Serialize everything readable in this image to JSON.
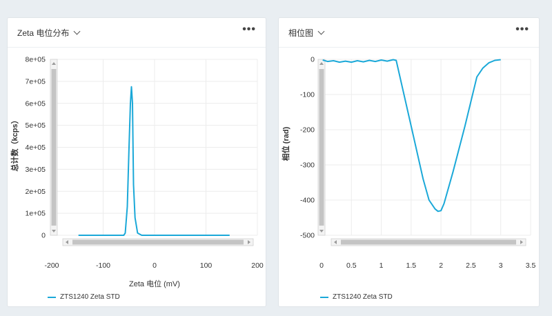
{
  "colors": {
    "series": "#1aa8d8",
    "scrollbar": "#c4c4c4",
    "grid": "#ececec"
  },
  "icons": {
    "menu": "more-horizontal-icon",
    "dropdown": "chevron-down-icon"
  },
  "panels": [
    {
      "title": "Zeta 电位分布",
      "menu_label": "•••",
      "legend_label": "ZTS1240 Zeta STD"
    },
    {
      "title": "相位图",
      "menu_label": "•••",
      "legend_label": "ZTS1240 Zeta STD"
    }
  ],
  "chart_data": [
    {
      "type": "line",
      "xlabel": "Zeta 电位 (mV)",
      "ylabel": "总计数（kcps）",
      "xlim": [
        -200,
        200
      ],
      "ylim": [
        0,
        800000
      ],
      "x_ticks": [
        "-200",
        "-100",
        "0",
        "100",
        "200"
      ],
      "y_ticks": [
        "0",
        "1e+05",
        "2e+05",
        "3e+05",
        "4e+05",
        "5e+05",
        "6e+05",
        "7e+05",
        "8e+05"
      ],
      "grid": true,
      "legend_placement": "bottom-left",
      "series": [
        {
          "name": "ZTS1240 Zeta STD",
          "x": [
            -148,
            -60,
            -57,
            -53,
            -50,
            -47,
            -45,
            -43,
            -41,
            -38,
            -33,
            -25,
            0,
            50,
            100,
            146
          ],
          "y": [
            0,
            0,
            10000,
            130000,
            380000,
            600000,
            675000,
            600000,
            230000,
            80000,
            10000,
            0,
            0,
            0,
            0,
            0
          ]
        }
      ]
    },
    {
      "type": "line",
      "xlabel": "",
      "ylabel": "相位 (rad)",
      "xlim": [
        0,
        3.5
      ],
      "ylim": [
        -500,
        0
      ],
      "x_ticks": [
        "0",
        "0.5",
        "1",
        "1.5",
        "2",
        "2.5",
        "3",
        "3.5"
      ],
      "y_ticks": [
        "-500",
        "-400",
        "-300",
        "-200",
        "-100",
        "0"
      ],
      "grid": true,
      "legend_placement": "bottom-left",
      "series": [
        {
          "name": "ZTS1240 Zeta STD",
          "x": [
            0.02,
            0.1,
            0.2,
            0.3,
            0.4,
            0.5,
            0.6,
            0.7,
            0.8,
            0.9,
            1.0,
            1.1,
            1.2,
            1.25,
            1.5,
            1.7,
            1.8,
            1.9,
            1.95,
            2.0,
            2.05,
            2.2,
            2.4,
            2.6,
            2.7,
            2.8,
            2.9,
            3.0
          ],
          "y": [
            -2,
            -6,
            -4,
            -8,
            -5,
            -8,
            -4,
            -7,
            -3,
            -6,
            -2,
            -5,
            -1,
            -3,
            -190,
            -340,
            -400,
            -425,
            -432,
            -430,
            -410,
            -320,
            -190,
            -50,
            -25,
            -10,
            -3,
            -1
          ]
        }
      ]
    }
  ]
}
